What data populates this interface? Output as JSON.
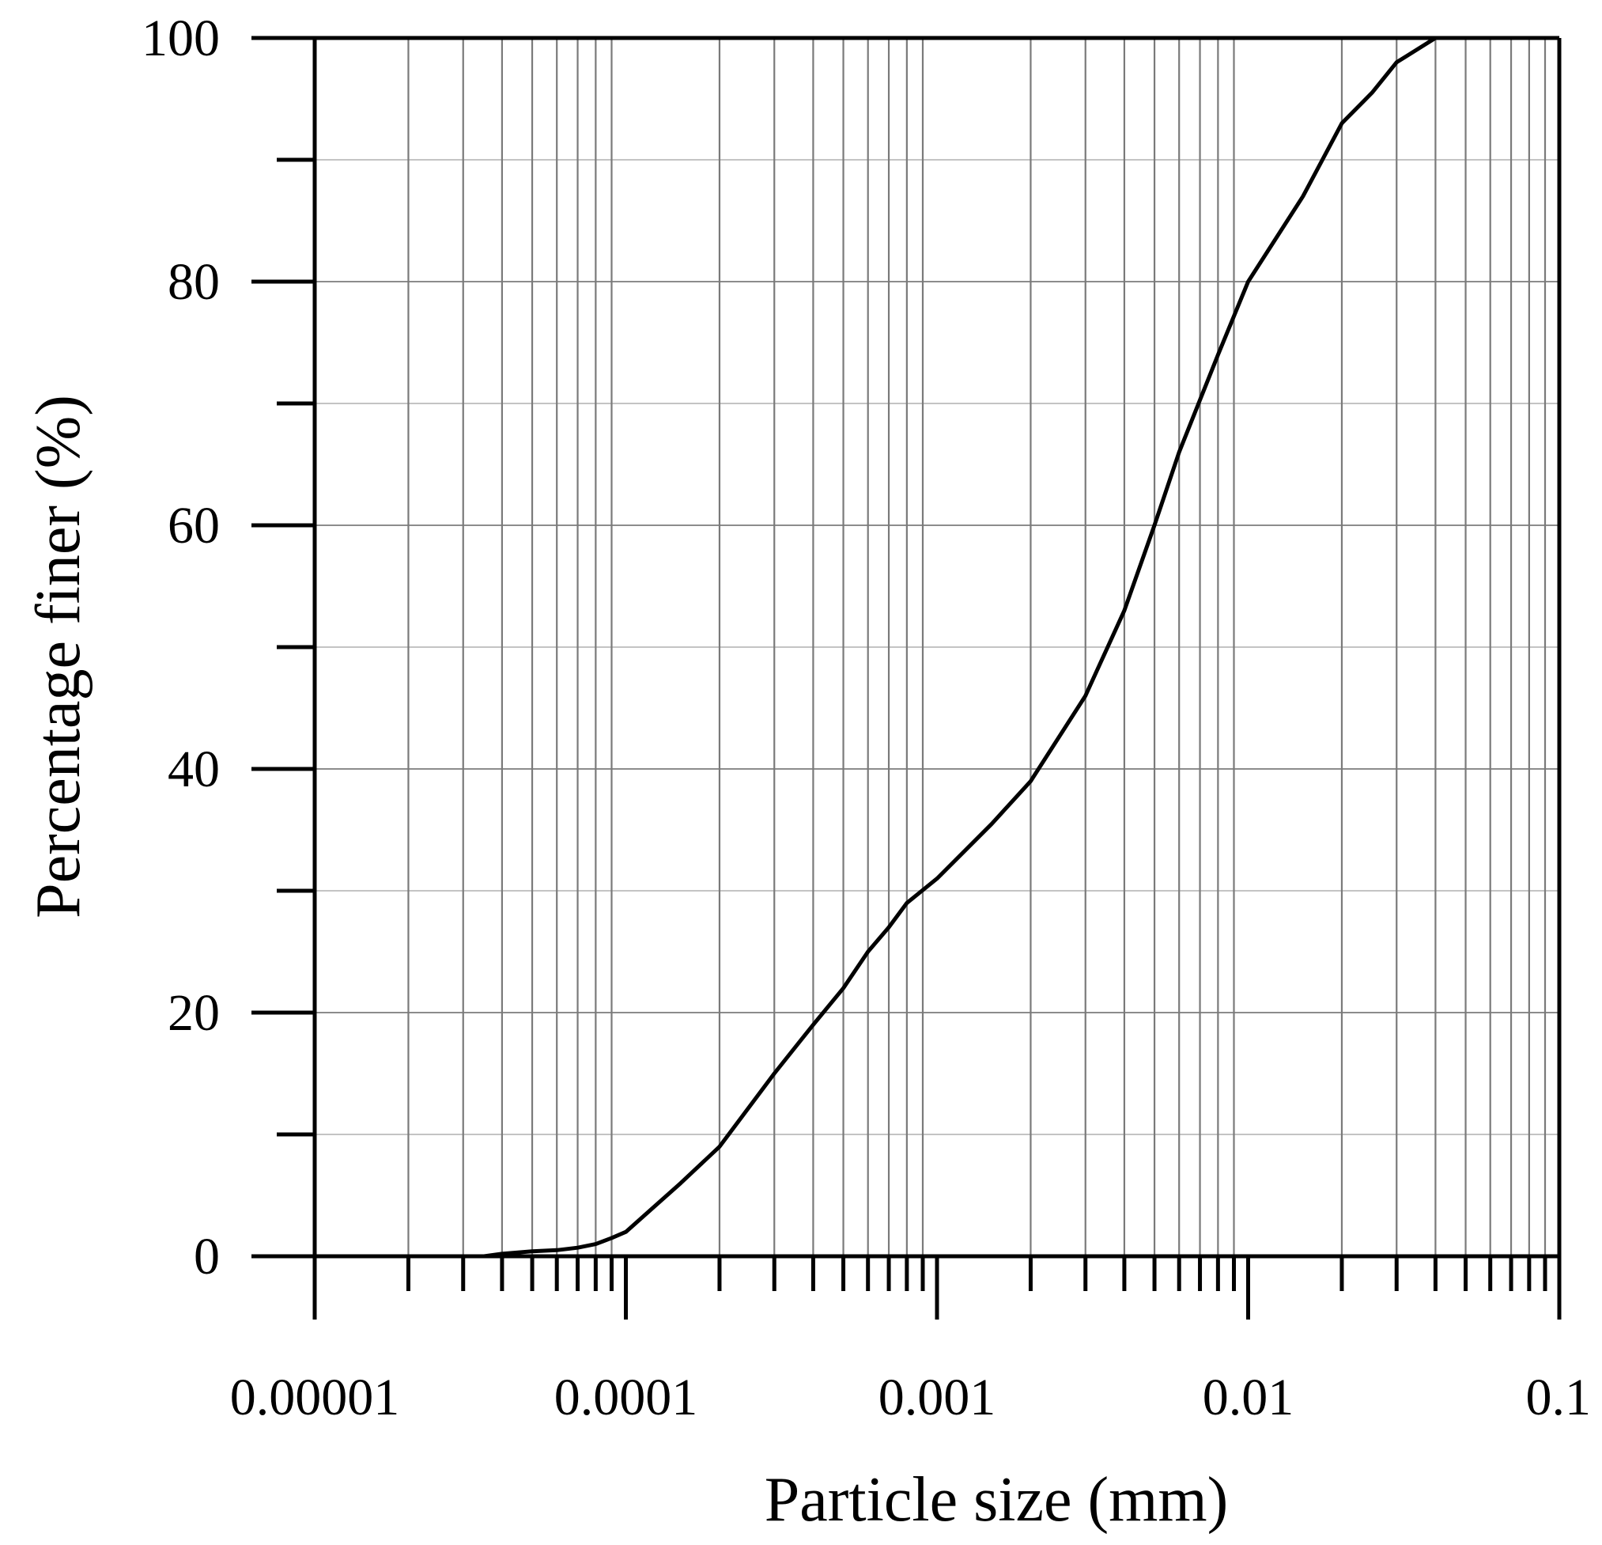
{
  "chart_data": {
    "type": "line",
    "title": "",
    "xlabel": "Particle size (mm)",
    "ylabel": "Percentage finer (%)",
    "x_scale": "log",
    "xlim": [
      1e-05,
      0.1
    ],
    "ylim": [
      0,
      100
    ],
    "x_tick_labels": [
      "0.00001",
      "0.0001",
      "0.001",
      "0.01",
      "0.1"
    ],
    "x_tick_values": [
      1e-05,
      0.0001,
      0.001,
      0.01,
      0.1
    ],
    "y_tick_labels": [
      "0",
      "20",
      "40",
      "60",
      "80",
      "100"
    ],
    "y_tick_values": [
      0,
      20,
      40,
      60,
      80,
      100
    ],
    "y_minor_grid": [
      10,
      30,
      50,
      70,
      90
    ],
    "grid": true,
    "legend": "none",
    "series": [
      {
        "color": "#000000",
        "x": [
          3.5e-05,
          4e-05,
          5e-05,
          6e-05,
          7e-05,
          8e-05,
          9e-05,
          0.0001,
          0.00015,
          0.0002,
          0.0003,
          0.0004,
          0.0005,
          0.0006,
          0.0007,
          0.0008,
          0.001,
          0.0015,
          0.002,
          0.003,
          0.004,
          0.005,
          0.006,
          0.008,
          0.01,
          0.015,
          0.02,
          0.025,
          0.03,
          0.04
        ],
        "y": [
          0,
          0.2,
          0.4,
          0.5,
          0.7,
          1.0,
          1.5,
          2,
          6,
          9,
          15,
          19,
          22,
          25,
          27,
          29,
          31,
          35.5,
          39,
          46,
          53,
          60,
          66,
          74,
          80,
          87,
          93,
          95.5,
          98,
          100
        ]
      }
    ]
  }
}
